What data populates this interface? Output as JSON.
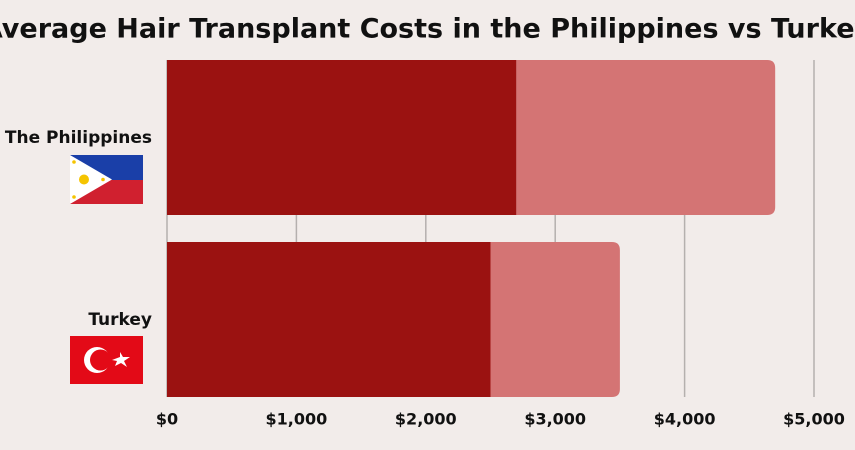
{
  "chart_data": {
    "type": "stacked-barh",
    "title": "Average Hair Transplant Costs in the Philippines vs Turkey",
    "categories": [
      "The Philippines",
      "Turkey"
    ],
    "series": [
      {
        "color": "#9b1211",
        "values": [
          2700,
          2500
        ]
      },
      {
        "color": "#d47474",
        "values": [
          2000,
          1000
        ]
      }
    ],
    "xlim": [
      0,
      5000
    ],
    "xticks": [
      {
        "value": 0,
        "label": "$0"
      },
      {
        "value": 1000,
        "label": "$1,000"
      },
      {
        "value": 2000,
        "label": "$2,000"
      },
      {
        "value": 3000,
        "label": "$3,000"
      },
      {
        "value": 4000,
        "label": "$4,000"
      },
      {
        "value": 5000,
        "label": "$5,000"
      }
    ],
    "grid": true
  }
}
